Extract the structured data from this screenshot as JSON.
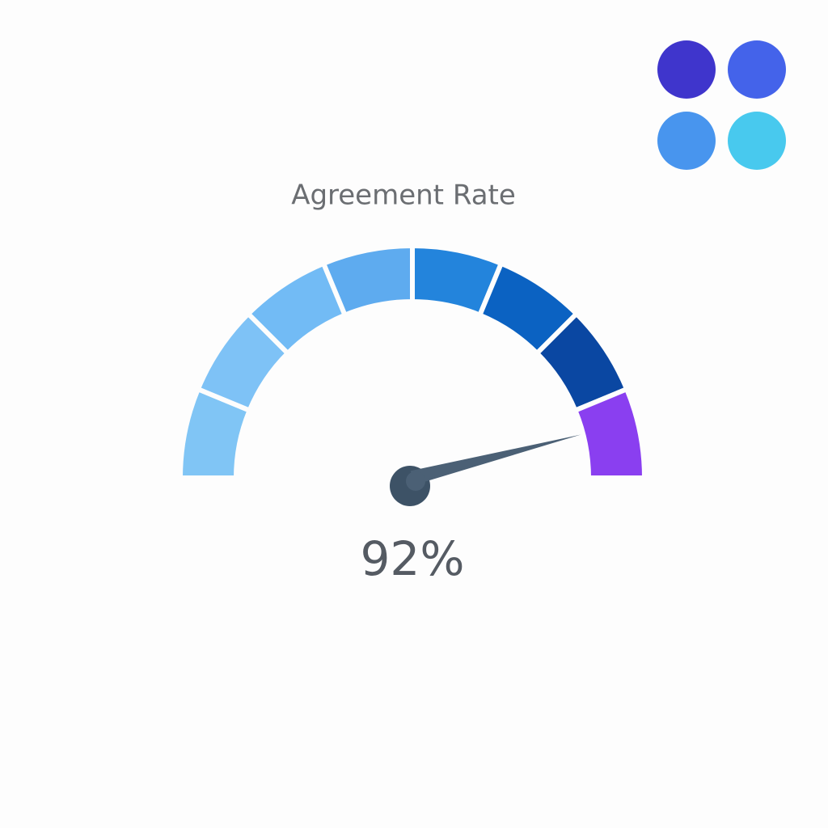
{
  "chart_data": {
    "type": "gauge",
    "title": "Agreement Rate",
    "values": [
      92
    ],
    "value_labels": [
      "92%"
    ],
    "ylim": [
      0,
      100
    ],
    "band_colors": [
      "#80c5f5",
      "#7ec2f6",
      "#72bbf5",
      "#5eabef",
      "#2384dc",
      "#0b62c2",
      "#0a47a2",
      "#8a3ff0"
    ],
    "needle_color": "#4b6075"
  }
}
